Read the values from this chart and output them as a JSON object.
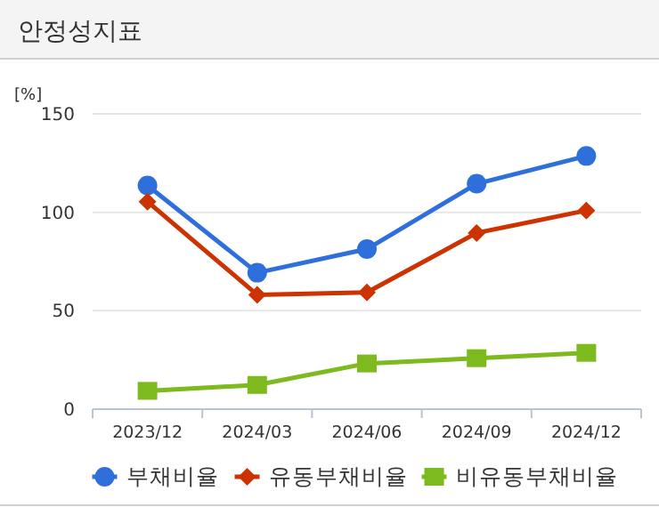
{
  "chart_data": {
    "type": "line",
    "title": "안정성지표",
    "ylabel": "[%]",
    "categories": [
      "2023/12",
      "2024/03",
      "2024/06",
      "2024/09",
      "2024/12"
    ],
    "series": [
      {
        "name": "부채비율",
        "color": "#2f6fdc",
        "marker": "circle",
        "values": [
          113.6,
          69.3,
          81.3,
          114.5,
          128.6
        ]
      },
      {
        "name": "유동부채비율",
        "color": "#cc3300",
        "marker": "diamond",
        "values": [
          105.4,
          58.1,
          59.3,
          89.5,
          100.9
        ]
      },
      {
        "name": "비유동부채비율",
        "color": "#7dba1e",
        "marker": "square",
        "values": [
          9.3,
          12.3,
          23.2,
          25.9,
          28.6
        ]
      }
    ],
    "ylim": [
      0,
      150
    ],
    "yticks": [
      0,
      50,
      100,
      150
    ],
    "grid": "y",
    "legend": "bottom",
    "line_style": "solid"
  }
}
